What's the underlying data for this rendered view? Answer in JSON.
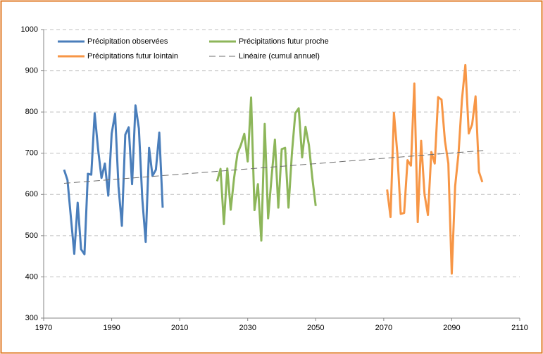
{
  "chart_data": {
    "type": "line",
    "xlim": [
      1970,
      2110
    ],
    "xticks": [
      1970,
      1990,
      2010,
      2030,
      2050,
      2070,
      2090,
      2110
    ],
    "ylim": [
      300,
      1000
    ],
    "yticks": [
      300,
      400,
      500,
      600,
      700,
      800,
      900,
      1000
    ],
    "grid": true,
    "legend": "top-left",
    "series": [
      {
        "name": "Précipitation observées",
        "color": "#4a7ebb",
        "style": "solid",
        "x": [
          1976,
          1977,
          1978,
          1979,
          1980,
          1981,
          1982,
          1983,
          1984,
          1985,
          1986,
          1987,
          1988,
          1989,
          1990,
          1991,
          1992,
          1993,
          1994,
          1995,
          1996,
          1997,
          1998,
          1999,
          2000,
          2001,
          2002,
          2003,
          2004,
          2005
        ],
        "values": [
          660,
          635,
          545,
          456,
          580,
          467,
          455,
          650,
          648,
          797,
          710,
          640,
          675,
          597,
          748,
          796,
          620,
          524,
          745,
          763,
          625,
          816,
          760,
          590,
          485,
          713,
          645,
          660,
          750,
          568
        ]
      },
      {
        "name": "Précipitations futur proche",
        "color": "#8db65a",
        "style": "solid",
        "x": [
          2021,
          2022,
          2023,
          2024,
          2025,
          2026,
          2027,
          2028,
          2029,
          2030,
          2031,
          2032,
          2033,
          2034,
          2035,
          2036,
          2037,
          2038,
          2039,
          2040,
          2041,
          2042,
          2043,
          2044,
          2045,
          2046,
          2047,
          2048,
          2049,
          2050
        ],
        "values": [
          632,
          662,
          528,
          663,
          563,
          640,
          700,
          720,
          747,
          680,
          835,
          562,
          625,
          488,
          771,
          542,
          640,
          733,
          568,
          710,
          713,
          568,
          700,
          797,
          809,
          690,
          764,
          720,
          640,
          572
        ]
      },
      {
        "name": "Précipitations futur lointain",
        "color": "#f79646",
        "style": "solid",
        "x": [
          2071,
          2072,
          2073,
          2074,
          2075,
          2076,
          2077,
          2078,
          2079,
          2080,
          2081,
          2082,
          2083,
          2084,
          2085,
          2086,
          2087,
          2088,
          2089,
          2090,
          2091,
          2092,
          2093,
          2094,
          2095,
          2096,
          2097,
          2098,
          2099
        ],
        "values": [
          612,
          545,
          798,
          700,
          553,
          555,
          683,
          670,
          869,
          533,
          730,
          600,
          550,
          703,
          675,
          836,
          830,
          730,
          675,
          408,
          620,
          700,
          830,
          914,
          748,
          770,
          838,
          655,
          630
        ]
      },
      {
        "name": "Linéaire (cumul annuel)",
        "color": "#6e6e6e",
        "style": "dashed",
        "x": [
          1976,
          2100
        ],
        "values": [
          627,
          707
        ]
      }
    ]
  }
}
